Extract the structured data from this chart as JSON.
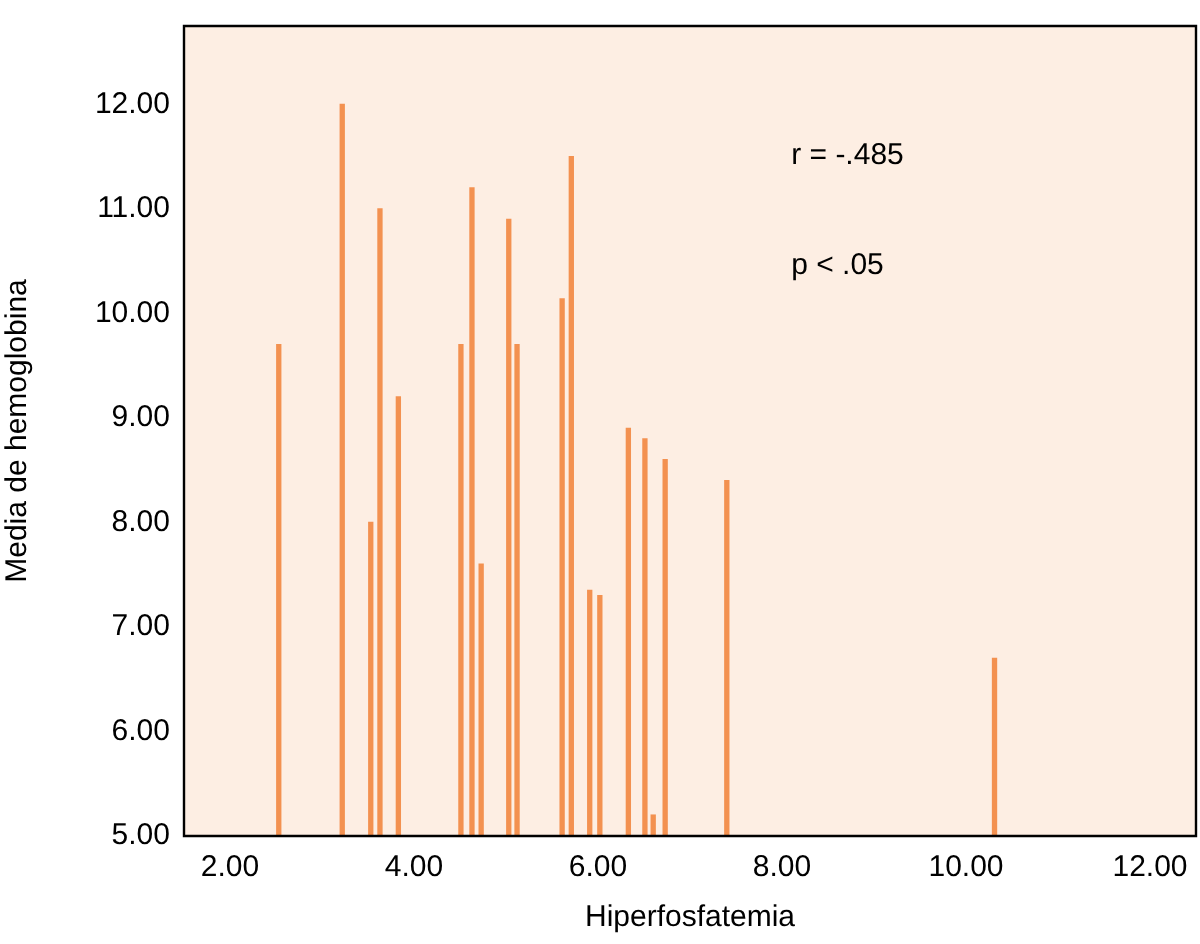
{
  "chart_data": {
    "type": "bar",
    "xlabel": "Hiperfosfatemia",
    "ylabel": "Media de hemoglobina",
    "x": [
      2.53,
      3.22,
      3.53,
      3.63,
      3.83,
      4.51,
      4.63,
      4.73,
      5.03,
      5.12,
      5.61,
      5.71,
      5.91,
      6.02,
      6.33,
      6.51,
      6.6,
      6.73,
      7.4,
      10.31
    ],
    "values": [
      9.7,
      12.0,
      8.0,
      11.0,
      9.2,
      9.7,
      11.2,
      7.6,
      10.9,
      9.7,
      10.14,
      11.5,
      7.35,
      7.3,
      8.9,
      8.8,
      5.2,
      8.6,
      8.4,
      6.7
    ],
    "color": "#f39150",
    "xlim": [
      1.5,
      12.5
    ],
    "xticks": [
      {
        "value": 2,
        "label": "2.00"
      },
      {
        "value": 4,
        "label": "4.00"
      },
      {
        "value": 6,
        "label": "6.00"
      },
      {
        "value": 8,
        "label": "8.00"
      },
      {
        "value": 10,
        "label": "10.00"
      },
      {
        "value": 12,
        "label": "12.00"
      }
    ],
    "ylim": [
      5,
      12.75
    ],
    "yticks": [
      {
        "value": 5,
        "label": "5.00"
      },
      {
        "value": 6,
        "label": "6.00"
      },
      {
        "value": 7,
        "label": "7.00"
      },
      {
        "value": 8,
        "label": "8.00"
      },
      {
        "value": 9,
        "label": "9.00"
      },
      {
        "value": 10,
        "label": "10.00"
      },
      {
        "value": 11,
        "label": "11.00"
      },
      {
        "value": 12,
        "label": "12.00"
      }
    ],
    "annotations": [
      "r = -.485",
      "p < .05"
    ],
    "grid": false,
    "legend": false
  }
}
